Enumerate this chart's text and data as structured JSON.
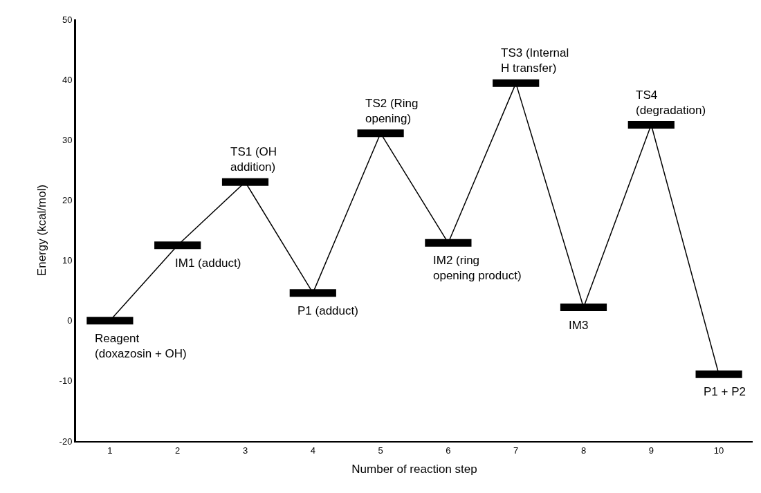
{
  "chart_data": {
    "type": "line",
    "xlabel": "Number of reaction step",
    "ylabel": "Energy (kcal/mol)",
    "categories": [
      "1",
      "2",
      "3",
      "4",
      "5",
      "6",
      "7",
      "8",
      "9",
      "10"
    ],
    "series": [
      {
        "color": "#000000",
        "values": [
          0,
          12.5,
          23,
          4.6,
          31.1,
          12.9,
          39.4,
          2.2,
          32.5,
          -8.9
        ]
      }
    ],
    "ylim": [
      -20,
      50
    ],
    "yticks": [
      -20,
      -10,
      0,
      10,
      20,
      30,
      40,
      50
    ],
    "grid": false,
    "line_style": "solid",
    "annotations": [
      {
        "text": "Reagent\n(doxazosin + OH)",
        "x": "1",
        "y": 0
      },
      {
        "text": "IM1 (adduct)",
        "x": "2",
        "y": 12.5
      },
      {
        "text": "TS1 (OH\naddition)",
        "x": "3",
        "y": 23
      },
      {
        "text": "P1 (adduct)",
        "x": "4",
        "y": 4.6
      },
      {
        "text": "TS2 (Ring\nopening)",
        "x": "5",
        "y": 31.1
      },
      {
        "text": "IM2 (ring\nopening product)",
        "x": "6",
        "y": 12.9
      },
      {
        "text": "TS3 (Internal\nH transfer)",
        "x": "7",
        "y": 39.4
      },
      {
        "text": "IM3",
        "x": "8",
        "y": 2.2
      },
      {
        "text": "TS4\n(degradation)",
        "x": "9",
        "y": 32.5
      },
      {
        "text": "P1 + P2",
        "x": "10",
        "y": -8.9
      }
    ]
  }
}
